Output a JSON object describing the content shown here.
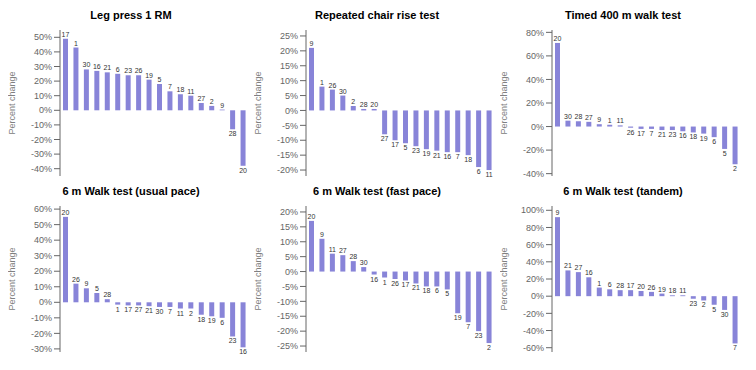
{
  "chart_data": [
    {
      "type": "bar",
      "title": "Leg press 1 RM",
      "y_label": "Percent change",
      "color": "#8884d8",
      "grid": false,
      "tick_labels": "y",
      "ylim": [
        -45,
        55
      ],
      "yticks": [
        {
          "value": -40,
          "label": "-40%"
        },
        {
          "value": -30,
          "label": "-30%"
        },
        {
          "value": -20,
          "label": "-20%"
        },
        {
          "value": -10,
          "label": "-10%"
        },
        {
          "value": 0,
          "label": "0%"
        },
        {
          "value": 10,
          "label": "10%"
        },
        {
          "value": 20,
          "label": "20%"
        },
        {
          "value": 30,
          "label": "30%"
        },
        {
          "value": 40,
          "label": "40%"
        },
        {
          "value": 50,
          "label": "50%"
        }
      ],
      "categories": [
        "17",
        "1",
        "30",
        "16",
        "21",
        "6",
        "23",
        "26",
        "19",
        "5",
        "7",
        "18",
        "11",
        "27",
        "2",
        "9",
        "28",
        "20"
      ],
      "values": [
        49,
        43,
        28,
        27,
        26,
        25,
        24,
        24,
        21,
        18,
        13,
        11,
        10,
        5,
        3,
        0.5,
        -13,
        -38
      ]
    },
    {
      "type": "bar",
      "title": "Repeated chair rise test",
      "y_label": "Percent change",
      "color": "#8884d8",
      "grid": false,
      "tick_labels": "y",
      "ylim": [
        -22,
        27
      ],
      "yticks": [
        {
          "value": -20,
          "label": "-20%"
        },
        {
          "value": -15,
          "label": "-15%"
        },
        {
          "value": -10,
          "label": "-10%"
        },
        {
          "value": -5,
          "label": "-5%"
        },
        {
          "value": 0,
          "label": "0%"
        },
        {
          "value": 5,
          "label": "5%"
        },
        {
          "value": 10,
          "label": "10%"
        },
        {
          "value": 15,
          "label": "15%"
        },
        {
          "value": 20,
          "label": "20%"
        },
        {
          "value": 25,
          "label": "25%"
        }
      ],
      "categories": [
        "9",
        "1",
        "26",
        "30",
        "2",
        "28",
        "20",
        "27",
        "17",
        "5",
        "23",
        "19",
        "21",
        "16",
        "7",
        "18",
        "6",
        "11"
      ],
      "values": [
        21,
        8,
        7,
        5,
        1.5,
        0.5,
        0.5,
        -8,
        -10,
        -11,
        -12,
        -13,
        -13.5,
        -14,
        -14,
        -15,
        -19,
        -20
      ]
    },
    {
      "type": "bar",
      "title": "Timed 400 m walk test",
      "y_label": "Percent change",
      "color": "#8884d8",
      "grid": false,
      "tick_labels": "y",
      "ylim": [
        -42,
        82
      ],
      "yticks": [
        {
          "value": -40,
          "label": "-40%"
        },
        {
          "value": -20,
          "label": "-20%"
        },
        {
          "value": 0,
          "label": "0%"
        },
        {
          "value": 20,
          "label": "20%"
        },
        {
          "value": 40,
          "label": "40%"
        },
        {
          "value": 60,
          "label": "60%"
        },
        {
          "value": 80,
          "label": "80%"
        }
      ],
      "categories": [
        "20",
        "30",
        "28",
        "27",
        "9",
        "1",
        "11",
        "26",
        "17",
        "7",
        "21",
        "23",
        "16",
        "18",
        "19",
        "6",
        "5",
        "2"
      ],
      "values": [
        71,
        5,
        4.5,
        4,
        2,
        1.5,
        1,
        -1,
        -2,
        -2,
        -3,
        -3,
        -4,
        -5,
        -6,
        -9,
        -19,
        -32
      ]
    },
    {
      "type": "bar",
      "title": "6 m Walk test (usual pace)",
      "y_label": "Percent change",
      "color": "#8884d8",
      "grid": false,
      "tick_labels": "y",
      "ylim": [
        -32,
        62
      ],
      "yticks": [
        {
          "value": -30,
          "label": "-30%"
        },
        {
          "value": -20,
          "label": "-20%"
        },
        {
          "value": -10,
          "label": "-10%"
        },
        {
          "value": 0,
          "label": "0%"
        },
        {
          "value": 10,
          "label": "10%"
        },
        {
          "value": 20,
          "label": "20%"
        },
        {
          "value": 30,
          "label": "30%"
        },
        {
          "value": 40,
          "label": "40%"
        },
        {
          "value": 50,
          "label": "50%"
        },
        {
          "value": 60,
          "label": "60%"
        }
      ],
      "categories": [
        "20",
        "26",
        "9",
        "5",
        "28",
        "1",
        "17",
        "27",
        "21",
        "30",
        "7",
        "11",
        "2",
        "18",
        "19",
        "6",
        "23",
        "16"
      ],
      "values": [
        55,
        12,
        9,
        6,
        2,
        -1.5,
        -2,
        -2,
        -2.5,
        -3,
        -3,
        -4,
        -4,
        -8,
        -9,
        -10,
        -22,
        -29
      ]
    },
    {
      "type": "bar",
      "title": "6 m Walk test (fast pace)",
      "y_label": "Percent change",
      "color": "#8884d8",
      "grid": false,
      "tick_labels": "y",
      "ylim": [
        -27,
        22
      ],
      "yticks": [
        {
          "value": -25,
          "label": "-25%"
        },
        {
          "value": -20,
          "label": "-20%"
        },
        {
          "value": -15,
          "label": "-15%"
        },
        {
          "value": -10,
          "label": "-10%"
        },
        {
          "value": -5,
          "label": "-5%"
        },
        {
          "value": 0,
          "label": "0%"
        },
        {
          "value": 5,
          "label": "5%"
        },
        {
          "value": 10,
          "label": "10%"
        },
        {
          "value": 15,
          "label": "15%"
        },
        {
          "value": 20,
          "label": "20%"
        }
      ],
      "categories": [
        "20",
        "9",
        "11",
        "27",
        "28",
        "30",
        "16",
        "1",
        "26",
        "17",
        "21",
        "18",
        "6",
        "5",
        "19",
        "7",
        "23",
        "2"
      ],
      "values": [
        17,
        11,
        6,
        5.5,
        3.5,
        1.5,
        -1,
        -2,
        -2.5,
        -3,
        -4,
        -5,
        -5,
        -6,
        -14,
        -17,
        -20,
        -24
      ]
    },
    {
      "type": "bar",
      "title": "6 m Walk test (tandem)",
      "y_label": "Percent change",
      "color": "#8884d8",
      "grid": false,
      "tick_labels": "y",
      "ylim": [
        -65,
        105
      ],
      "yticks": [
        {
          "value": -60,
          "label": "-60%"
        },
        {
          "value": -40,
          "label": "-40%"
        },
        {
          "value": -20,
          "label": "-20%"
        },
        {
          "value": 0,
          "label": "0%"
        },
        {
          "value": 20,
          "label": "20%"
        },
        {
          "value": 40,
          "label": "40%"
        },
        {
          "value": 60,
          "label": "60%"
        },
        {
          "value": 80,
          "label": "80%"
        },
        {
          "value": 100,
          "label": "100%"
        }
      ],
      "categories": [
        "9",
        "21",
        "27",
        "16",
        "1",
        "6",
        "28",
        "17",
        "20",
        "26",
        "19",
        "18",
        "11",
        "23",
        "2",
        "5",
        "30",
        "7"
      ],
      "values": [
        92,
        30,
        28,
        22,
        10,
        8,
        7,
        7,
        6,
        5,
        3,
        1,
        1,
        -3,
        -5,
        -10,
        -16,
        -55
      ]
    }
  ]
}
